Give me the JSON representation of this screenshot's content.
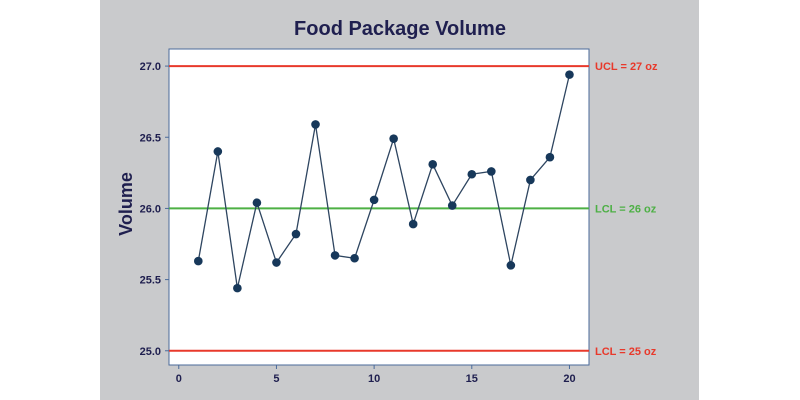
{
  "chart_data": {
    "type": "line",
    "title": "Food Package Volume",
    "xlabel": "",
    "ylabel": "Volume",
    "xlim": [
      -0.5,
      21
    ],
    "ylim": [
      24.9,
      27.12
    ],
    "x_ticks": [
      "0",
      "5",
      "10",
      "15",
      "20"
    ],
    "y_ticks": [
      "25.0",
      "25.5",
      "26.0",
      "26.5",
      "27.0"
    ],
    "x": [
      1,
      2,
      3,
      4,
      5,
      6,
      7,
      8,
      9,
      10,
      11,
      12,
      13,
      14,
      15,
      16,
      17,
      18,
      19,
      20
    ],
    "series": [
      {
        "values": [
          25.63,
          26.4,
          25.44,
          26.04,
          25.62,
          25.82,
          26.59,
          25.67,
          25.65,
          26.06,
          26.49,
          25.89,
          26.31,
          26.02,
          26.24,
          26.26,
          25.6,
          26.2,
          26.36,
          26.94
        ]
      }
    ],
    "reference_lines": [
      {
        "label": "UCL = 27 oz",
        "value": 27.0,
        "color": "#e8392b"
      },
      {
        "label": "LCL = 26 oz",
        "value": 26.0,
        "color": "#4db045"
      },
      {
        "label": "LCL = 25 oz",
        "value": 25.0,
        "color": "#e8392b"
      }
    ],
    "line_color": "#2e4560",
    "marker_color": "#17385a",
    "grid": false
  }
}
